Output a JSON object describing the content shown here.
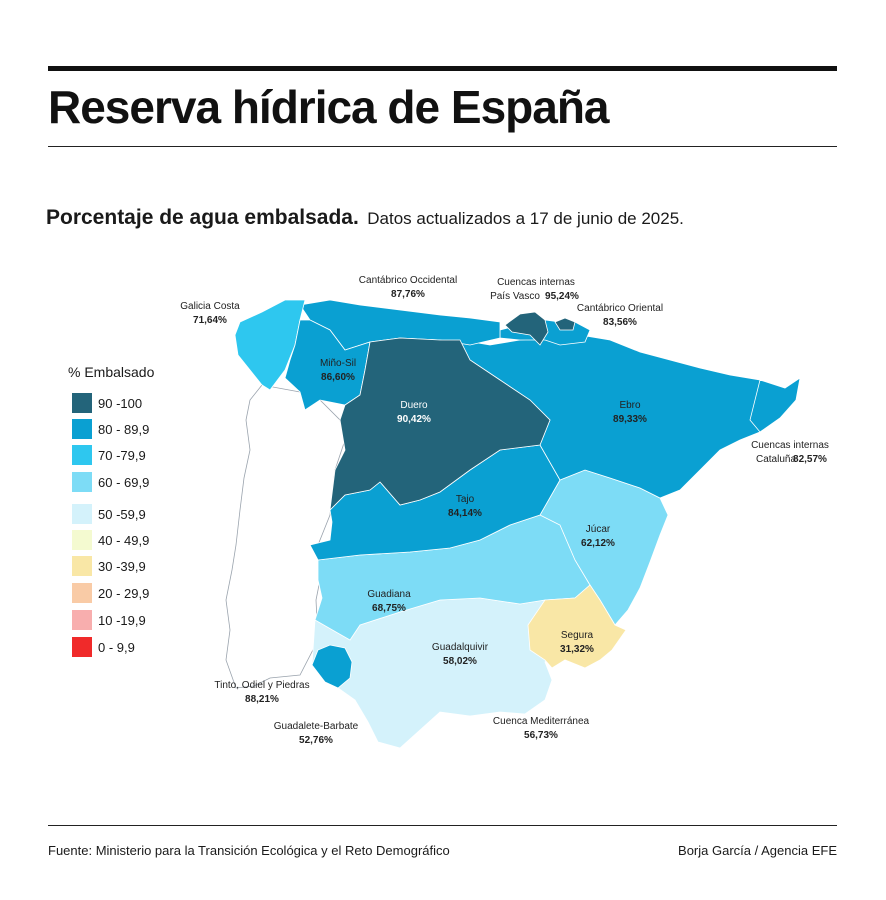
{
  "header": {
    "title": "Reserva hídrica de España",
    "subtitle_strong": "Porcentaje de agua embalsada.",
    "subtitle_light": "Datos actualizados a 17 de junio de 2025."
  },
  "legend": {
    "title": "% Embalsado",
    "items": [
      {
        "label": "90 -100",
        "color": "#23647a"
      },
      {
        "label": "80 - 89,9",
        "color": "#0aa0d2"
      },
      {
        "label": "70 -79,9",
        "color": "#2ec7ef"
      },
      {
        "label": "60 - 69,9",
        "color": "#7ddcf6"
      },
      {
        "label": "50 -59,9",
        "color": "#d4f2fb"
      },
      {
        "label": "40 - 49,9",
        "color": "#f4fad0"
      },
      {
        "label": "30 -39,9",
        "color": "#f9e7a6"
      },
      {
        "label": "20 - 29,9",
        "color": "#f9cba6"
      },
      {
        "label": "10 -19,9",
        "color": "#f8aeae"
      },
      {
        "label": "0 - 9,9",
        "color": "#f02a2a"
      }
    ]
  },
  "basins": [
    {
      "name": "Galicia Costa",
      "value": "71,64%"
    },
    {
      "name": "Cantábrico Occidental",
      "value": "87,76%"
    },
    {
      "name": "Cuencas internas",
      "name2": "País Vasco",
      "value": "95,24%"
    },
    {
      "name": "Cantábrico Oriental",
      "value": "83,56%"
    },
    {
      "name": "Miño-Sil",
      "value": "86,60%"
    },
    {
      "name": "Duero",
      "value": "90,42%"
    },
    {
      "name": "Ebro",
      "value": "89,33%"
    },
    {
      "name": "Cuencas internas",
      "name2": "Cataluña",
      "value": "82,57%"
    },
    {
      "name": "Tajo",
      "value": "84,14%"
    },
    {
      "name": "Júcar",
      "value": "62,12%"
    },
    {
      "name": "Guadiana",
      "value": "68,75%"
    },
    {
      "name": "Segura",
      "value": "31,32%"
    },
    {
      "name": "Guadalquivir",
      "value": "58,02%"
    },
    {
      "name": "Tinto, Odiel y Piedras",
      "value": "88,21%"
    },
    {
      "name": "Guadalete-Barbate",
      "value": "52,76%"
    },
    {
      "name": "Cuenca Mediterránea",
      "value": "56,73%"
    }
  ],
  "footer": {
    "source": "Fuente: Ministerio para la Transición Ecológica y el Reto Demográfico",
    "credit": "Borja García / Agencia EFE"
  }
}
